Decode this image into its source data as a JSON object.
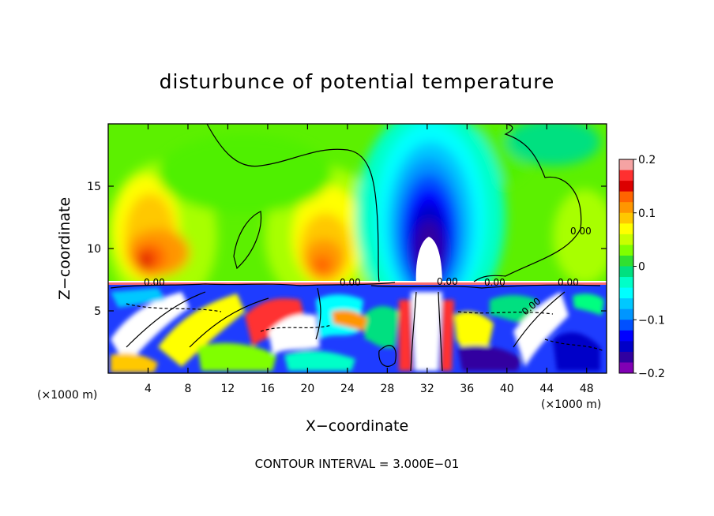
{
  "chart_data": {
    "type": "heatmap",
    "title": "disturbunce of potential temperature",
    "xlabel": "X−coordinate",
    "ylabel": "Z−coordinate",
    "x_unit_left": "(×1000 m)",
    "x_unit_right": "(×1000 m)",
    "xlim": [
      0,
      50
    ],
    "ylim": [
      0,
      20
    ],
    "x_ticks": [
      4,
      8,
      12,
      16,
      20,
      24,
      28,
      32,
      36,
      40,
      44,
      48
    ],
    "x_tick_labels": [
      "4",
      "8",
      "12",
      "16",
      "20",
      "24",
      "28",
      "32",
      "36",
      "40",
      "44",
      "48"
    ],
    "y_ticks": [
      5,
      10,
      15
    ],
    "y_tick_labels": [
      "5",
      "10",
      "15"
    ],
    "colorbar": {
      "range": [
        -0.2,
        0.2
      ],
      "tick_values": [
        0.2,
        0.1,
        0,
        -0.1,
        -0.2
      ],
      "tick_labels": [
        "0.2",
        "0.1",
        "0",
        "−0.1",
        "−0.2"
      ],
      "colors": [
        "#f5a3a3",
        "#ff3030",
        "#dc0000",
        "#ff6400",
        "#ff9600",
        "#ffc800",
        "#ffff00",
        "#c8ff00",
        "#80ff00",
        "#30e030",
        "#00e080",
        "#00ffc8",
        "#00ffff",
        "#00c8ff",
        "#0096ff",
        "#0050ff",
        "#0000ff",
        "#0000c8",
        "#3000a0",
        "#8000b4"
      ]
    },
    "contour_labels": [
      "0.00",
      "0.00",
      "0.00",
      "0.00",
      "0.00",
      "0.00",
      "0.00"
    ],
    "contour_interval": "CONTOUR INTERVAL =  3.000E−01",
    "features": [
      {
        "type": "warm-anomaly",
        "x": 5,
        "z": 11,
        "value": 0.13
      },
      {
        "type": "warm-anomaly",
        "x": 21.5,
        "z": 10.5,
        "value": 0.12
      },
      {
        "type": "cold-anomaly",
        "x": 32,
        "z": 12,
        "value": -0.2
      },
      {
        "type": "turbulent-layer",
        "z_top": 7.2
      }
    ]
  }
}
